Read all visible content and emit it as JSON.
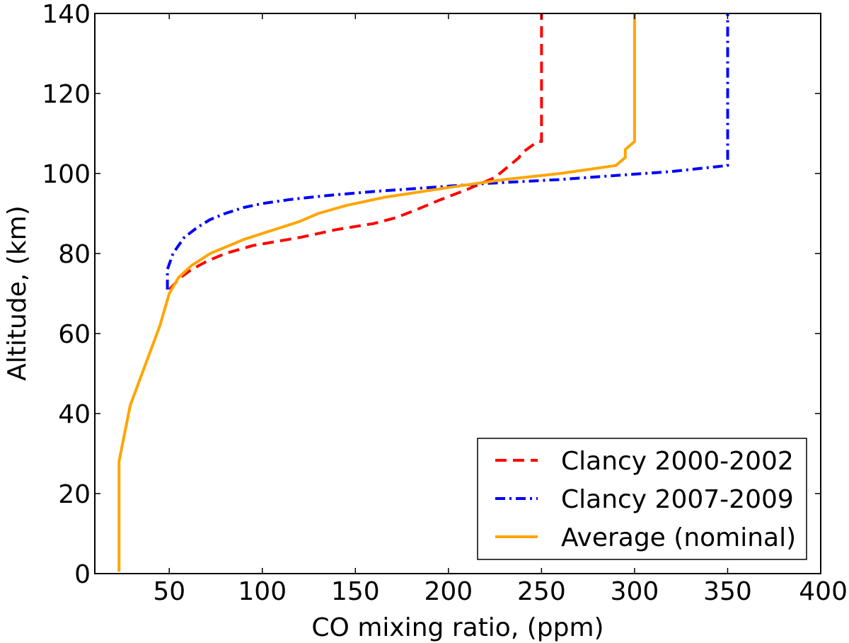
{
  "chart_data": {
    "type": "line",
    "title": "",
    "xlabel": "CO mixing ratio, (ppm)",
    "ylabel": "Altitude, (km)",
    "xlim": [
      10,
      400
    ],
    "ylim": [
      0,
      140
    ],
    "xticks": [
      50,
      100,
      150,
      200,
      250,
      300,
      350,
      400
    ],
    "yticks": [
      0,
      20,
      40,
      60,
      80,
      100,
      120,
      140
    ],
    "grid": false,
    "legend_position": "lower-right",
    "series": [
      {
        "name": "Clancy 2000-2002",
        "color": "#ff0000",
        "style": "dashed",
        "x": [
          50,
          52,
          56,
          62,
          70,
          80,
          95,
          120,
          140,
          160,
          172,
          183,
          196,
          210,
          225,
          238,
          239,
          248,
          250,
          250
        ],
        "y": [
          71,
          72,
          74,
          76,
          78,
          80,
          82,
          84,
          86,
          87.5,
          89,
          91,
          93.5,
          96,
          99,
          104,
          105,
          108,
          108,
          140
        ]
      },
      {
        "name": "Clancy 2007-2009",
        "color": "#0000ff",
        "style": "dashdot",
        "x": [
          49,
          49,
          52,
          58,
          65,
          72,
          80,
          90,
          100,
          115,
          135,
          160,
          190,
          220,
          260,
          290,
          320,
          350,
          350
        ],
        "y": [
          71,
          76,
          80,
          84,
          86.5,
          88.5,
          90,
          91.5,
          92.5,
          93.5,
          94.5,
          95.5,
          96.5,
          97.5,
          98.5,
          99.5,
          100.5,
          102,
          140
        ]
      },
      {
        "name": "Average (nominal)",
        "color": "#ffa500",
        "style": "solid",
        "x": [
          23,
          23,
          29,
          37,
          45,
          50,
          55,
          62,
          72,
          90,
          120,
          130,
          145,
          165,
          200,
          230,
          260,
          290,
          295,
          295,
          300,
          300
        ],
        "y": [
          0.5,
          28,
          42,
          52,
          62,
          70,
          74,
          77,
          80,
          83.5,
          88,
          90,
          92,
          94,
          96.5,
          98.5,
          100,
          102,
          104,
          106,
          108,
          140
        ]
      }
    ]
  }
}
